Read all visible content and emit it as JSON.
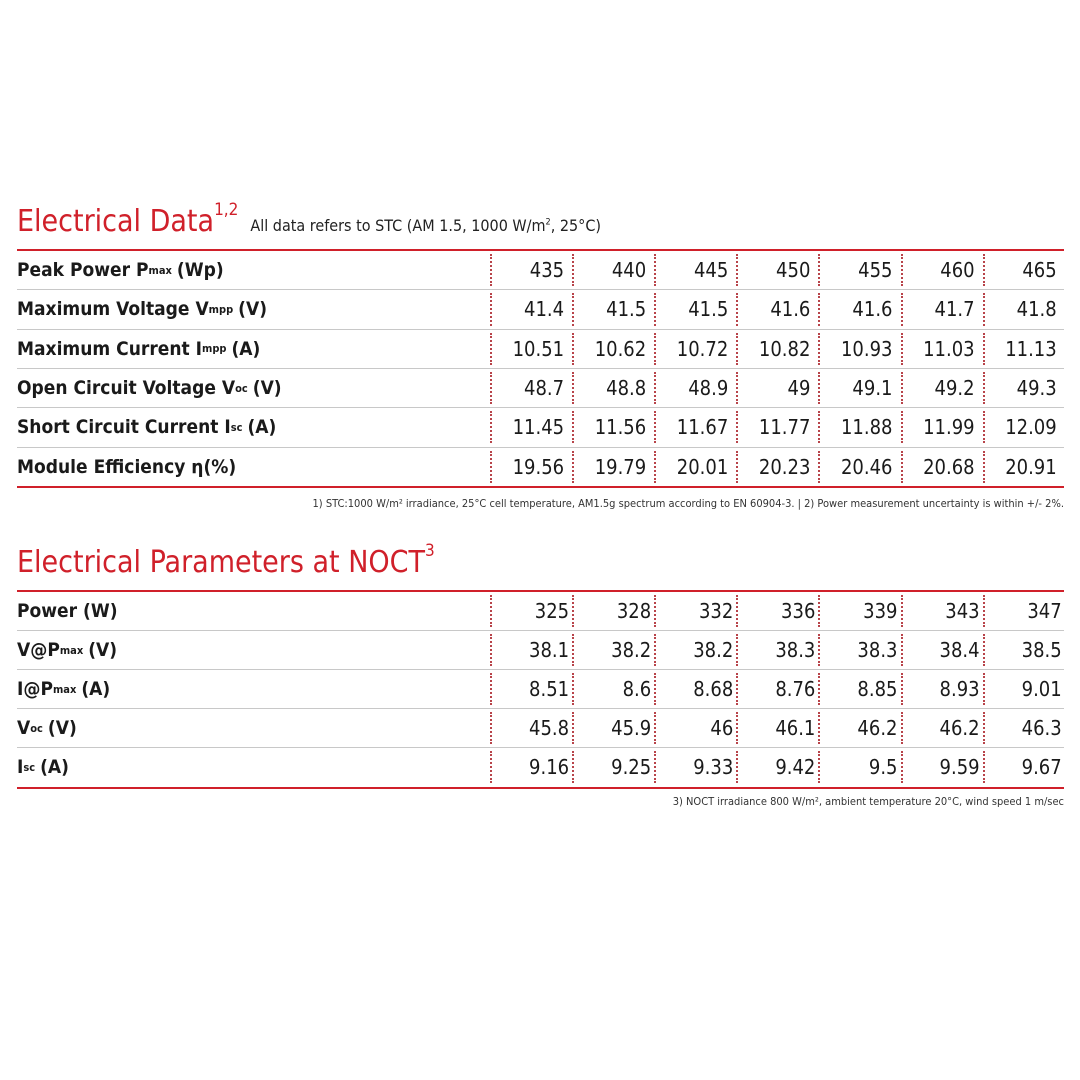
{
  "sections": [
    {
      "title": "Electrical Data",
      "title_sup": "1,2",
      "note": {
        "text": "All data refers to STC (AM 1.5, 1000 W/m",
        "sup": "2",
        "rest": ", 25°C)"
      },
      "rows": [
        {
          "label": {
            "main": "Peak Power P",
            "sub": "max",
            "rest": "(Wp)"
          },
          "values": [
            435,
            440,
            445,
            450,
            455,
            460,
            465
          ]
        },
        {
          "label": {
            "main": "Maximum Voltage V",
            "sub": "mpp",
            "rest": "(V)"
          },
          "values": [
            41.4,
            41.5,
            41.5,
            41.6,
            41.6,
            41.7,
            41.8
          ]
        },
        {
          "label": {
            "main": "Maximum Current I",
            "sub": "mpp",
            "rest": "(A)"
          },
          "values": [
            10.51,
            10.62,
            10.72,
            10.82,
            10.93,
            11.03,
            11.13
          ]
        },
        {
          "label": {
            "main": "Open Circuit Voltage V",
            "sub": "oc",
            "rest": "(V)"
          },
          "values": [
            48.7,
            48.8,
            48.9,
            49,
            49.1,
            49.2,
            49.3
          ]
        },
        {
          "label": {
            "main": "Short Circuit Current I",
            "sub": "sc",
            "rest": "(A)"
          },
          "values": [
            11.45,
            11.56,
            11.67,
            11.77,
            11.88,
            11.99,
            12.09
          ]
        },
        {
          "label": {
            "main": "Module Efficiency η(%)"
          },
          "values": [
            19.56,
            19.79,
            20.01,
            20.23,
            20.46,
            20.68,
            20.91
          ]
        }
      ],
      "footnote": "1) STC:1000 W/m² irradiance, 25°C cell temperature, AM1.5g spectrum according to EN 60904-3. | 2) Power measurement uncertainty is within +/- 2%."
    },
    {
      "title": "Electrical Parameters at NOCT",
      "title_sup": "3",
      "rows": [
        {
          "label": {
            "main": "Power (W)"
          },
          "values": [
            325,
            328,
            332,
            336,
            339,
            343,
            347
          ]
        },
        {
          "label": {
            "main": "V@P",
            "sub": "max",
            "rest": "(V)"
          },
          "values": [
            38.1,
            38.2,
            38.2,
            38.3,
            38.3,
            38.4,
            38.5
          ]
        },
        {
          "label": {
            "main": "I@P",
            "sub": "max",
            "rest": "(A)"
          },
          "values": [
            8.51,
            8.6,
            8.68,
            8.76,
            8.85,
            8.93,
            9.01
          ]
        },
        {
          "label": {
            "main": "V",
            "sub": "oc",
            "rest": "(V)"
          },
          "values": [
            45.8,
            45.9,
            46,
            46.1,
            46.2,
            46.2,
            46.3
          ]
        },
        {
          "label": {
            "main": "I",
            "sub": "sc",
            "rest": "(A)"
          },
          "values": [
            9.16,
            9.25,
            9.33,
            9.42,
            9.5,
            9.59,
            9.67
          ]
        }
      ],
      "footnote": "3) NOCT irradiance 800 W/m², ambient temperature 20°C, wind speed 1 m/sec"
    }
  ]
}
